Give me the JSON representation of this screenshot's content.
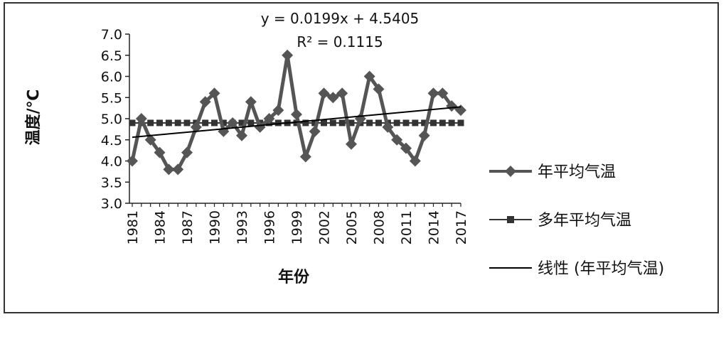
{
  "chart_data": {
    "type": "line",
    "xlabel": "年份",
    "ylabel": "温度/℃",
    "ylim": [
      3.0,
      7.0
    ],
    "ytick_step": 0.5,
    "ytick_labels": [
      "3.0",
      "3.5",
      "4.0",
      "4.5",
      "5.0",
      "5.5",
      "6.0",
      "6.5",
      "7.0"
    ],
    "xlim": [
      1981,
      2017
    ],
    "xtick_labels": [
      "1981",
      "1984",
      "1987",
      "1990",
      "1993",
      "1996",
      "1999",
      "2002",
      "2005",
      "2008",
      "2011",
      "2014",
      "2017"
    ],
    "grid": false,
    "legend_position": "right",
    "annotations": {
      "equation": "y = 0.0199x + 4.5405",
      "r2": "R² = 0.1115"
    },
    "series": [
      {
        "name": "年平均气温",
        "marker": "diamond",
        "color": "#555555",
        "x": [
          1981,
          1982,
          1983,
          1984,
          1985,
          1986,
          1987,
          1988,
          1989,
          1990,
          1991,
          1992,
          1993,
          1994,
          1995,
          1996,
          1997,
          1998,
          1999,
          2000,
          2001,
          2002,
          2003,
          2004,
          2005,
          2006,
          2007,
          2008,
          2009,
          2010,
          2011,
          2012,
          2013,
          2014,
          2015,
          2016,
          2017
        ],
        "values": [
          4.0,
          5.0,
          4.5,
          4.2,
          3.8,
          3.8,
          4.2,
          4.8,
          5.4,
          5.6,
          4.7,
          4.9,
          4.6,
          5.4,
          4.8,
          5.0,
          5.2,
          6.5,
          5.1,
          4.1,
          4.7,
          5.6,
          5.5,
          5.6,
          4.4,
          5.0,
          6.0,
          5.7,
          4.8,
          4.5,
          4.3,
          4.0,
          4.6,
          5.6,
          5.6,
          5.3,
          5.2
        ]
      },
      {
        "name": "多年平均气温",
        "marker": "square",
        "color": "#333333",
        "x": [
          1981,
          1982,
          1983,
          1984,
          1985,
          1986,
          1987,
          1988,
          1989,
          1990,
          1991,
          1992,
          1993,
          1994,
          1995,
          1996,
          1997,
          1998,
          1999,
          2000,
          2001,
          2002,
          2003,
          2004,
          2005,
          2006,
          2007,
          2008,
          2009,
          2010,
          2011,
          2012,
          2013,
          2014,
          2015,
          2016,
          2017
        ],
        "values": [
          4.9,
          4.9,
          4.9,
          4.9,
          4.9,
          4.9,
          4.9,
          4.9,
          4.9,
          4.9,
          4.9,
          4.9,
          4.9,
          4.9,
          4.9,
          4.9,
          4.9,
          4.9,
          4.9,
          4.9,
          4.9,
          4.9,
          4.9,
          4.9,
          4.9,
          4.9,
          4.9,
          4.9,
          4.9,
          4.9,
          4.9,
          4.9,
          4.9,
          4.9,
          4.9,
          4.9,
          4.9
        ]
      },
      {
        "name": "线性 (年平均气温)",
        "marker": "none",
        "color": "#000000",
        "x": [
          1981,
          2017
        ],
        "values": [
          4.56,
          5.28
        ]
      }
    ]
  }
}
